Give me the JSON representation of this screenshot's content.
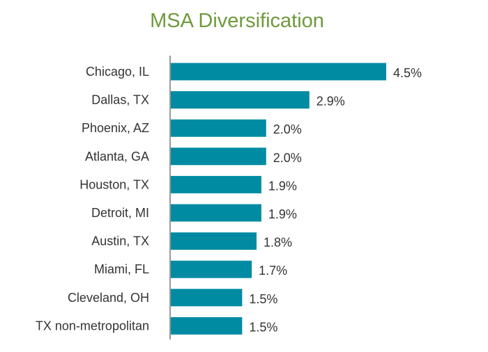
{
  "chart_data": {
    "type": "bar",
    "orientation": "horizontal",
    "title": "MSA Diversification",
    "categories": [
      "Chicago, IL",
      "Dallas, TX",
      "Phoenix, AZ",
      "Atlanta, GA",
      "Houston, TX",
      "Detroit, MI",
      "Austin, TX",
      "Miami, FL",
      "Cleveland, OH",
      "TX non-metropolitan"
    ],
    "values": [
      4.5,
      2.9,
      2.0,
      2.0,
      1.9,
      1.9,
      1.8,
      1.7,
      1.5,
      1.5
    ],
    "value_labels": [
      "4.5%",
      "2.9%",
      "2.0%",
      "2.0%",
      "1.9%",
      "1.9%",
      "1.8%",
      "1.7%",
      "1.5%",
      "1.5%"
    ],
    "xlim": [
      0,
      4.5
    ],
    "xlabel": "",
    "ylabel": "",
    "grid": false,
    "bar_color": "#008ba3",
    "title_color": "#6e9a3c"
  }
}
